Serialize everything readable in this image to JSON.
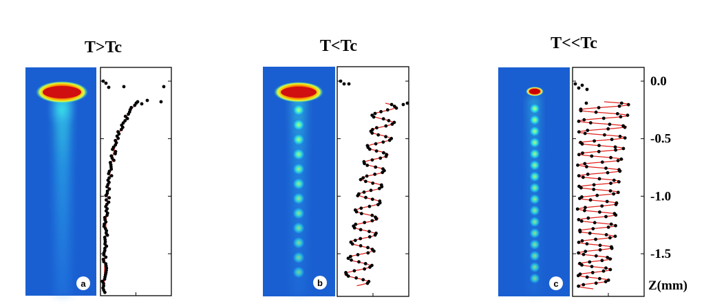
{
  "figure": {
    "panels": [
      {
        "title": "T>Tc",
        "badge": "a",
        "regime": "above_critical"
      },
      {
        "title": "T<Tc",
        "badge": "b",
        "regime": "below_critical"
      },
      {
        "title": "T<<Tc",
        "badge": "c",
        "regime": "far_below_critical"
      }
    ],
    "z_axis": {
      "label": "Z(mm)",
      "tick_labels": [
        "0.0",
        "-0.5",
        "-1.0",
        "-1.5"
      ],
      "tick_values": [
        0.0,
        -0.5,
        -1.0,
        -1.5
      ],
      "range": [
        0.1,
        -1.85
      ]
    },
    "colors": {
      "background": "#1a5fd1",
      "core": "#d01616",
      "glow": "#20e8d8",
      "fit_line": "#e0201a",
      "points": "#000000"
    }
  }
}
